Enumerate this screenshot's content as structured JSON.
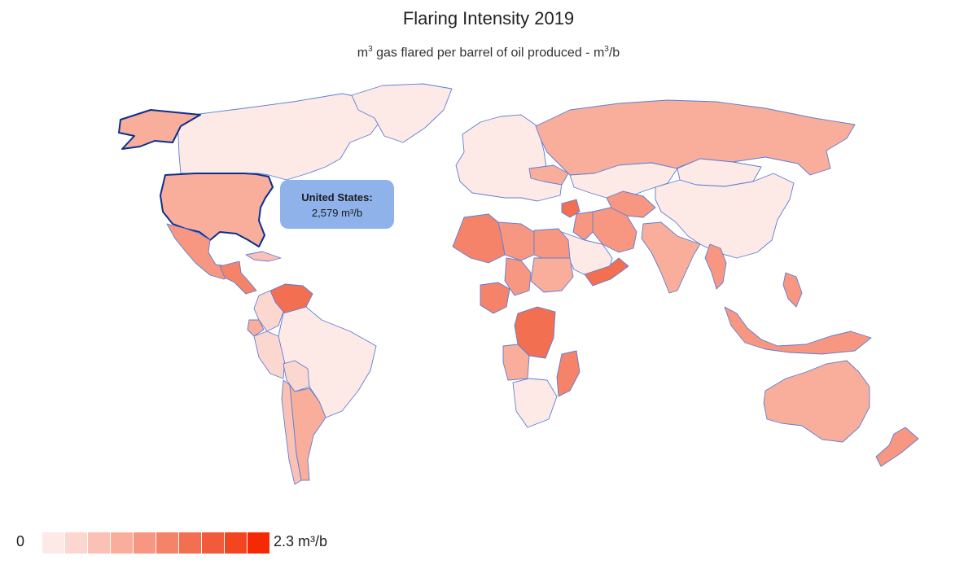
{
  "title": "Flaring Intensity 2019",
  "subtitle": {
    "prefix": "m",
    "sup1": "3",
    "middle": " gas flared per barrel of oil produced - m",
    "sup2": "3",
    "suffix": "/b"
  },
  "tooltip": {
    "country": "United States:",
    "value": "2,579 m³/b"
  },
  "legend": {
    "min_label": "0",
    "max_label": "2.3 m³/b",
    "colors": [
      "#fde9e6",
      "#fcd7d0",
      "#fbc1b5",
      "#f9ad9b",
      "#f79781",
      "#f58369",
      "#f36f52",
      "#f15b3b",
      "#f24520",
      "#f52a05"
    ]
  },
  "map": {
    "highlight_stroke": "#0a2f8f",
    "border_color": "#5b7fd6",
    "countries": [
      {
        "name": "United States",
        "level": 3
      },
      {
        "name": "Alaska (United States)",
        "level": 3
      },
      {
        "name": "Canada",
        "level": 0
      },
      {
        "name": "Greenland",
        "level": 0
      },
      {
        "name": "Mexico",
        "level": 4
      },
      {
        "name": "Guatemala",
        "level": 5
      },
      {
        "name": "Cuba",
        "level": 2
      },
      {
        "name": "Venezuela",
        "level": 6
      },
      {
        "name": "Colombia",
        "level": 1
      },
      {
        "name": "Ecuador",
        "level": 3
      },
      {
        "name": "Peru",
        "level": 1
      },
      {
        "name": "Brazil",
        "level": 0
      },
      {
        "name": "Bolivia",
        "level": 1
      },
      {
        "name": "Argentina",
        "level": 3
      },
      {
        "name": "Chile",
        "level": 2
      },
      {
        "name": "Russia",
        "level": 3
      },
      {
        "name": "Kazakhstan",
        "level": 0
      },
      {
        "name": "China",
        "level": 0
      },
      {
        "name": "Mongolia",
        "level": 0
      },
      {
        "name": "Algeria",
        "level": 5
      },
      {
        "name": "Libya",
        "level": 4
      },
      {
        "name": "Egypt",
        "level": 4
      },
      {
        "name": "Nigeria",
        "level": 5
      },
      {
        "name": "Chad",
        "level": 4
      },
      {
        "name": "Sudan",
        "level": 3
      },
      {
        "name": "DR Congo",
        "level": 6
      },
      {
        "name": "Angola",
        "level": 3
      },
      {
        "name": "Mozambique",
        "level": 5
      },
      {
        "name": "South Africa",
        "level": 0
      },
      {
        "name": "Saudi Arabia",
        "level": 0
      },
      {
        "name": "Yemen",
        "level": 6
      },
      {
        "name": "Iran",
        "level": 4
      },
      {
        "name": "Iraq",
        "level": 4
      },
      {
        "name": "Syria",
        "level": 6
      },
      {
        "name": "Turkmenistan",
        "level": 4
      },
      {
        "name": "India",
        "level": 3
      },
      {
        "name": "Myanmar",
        "level": 4
      },
      {
        "name": "Indonesia",
        "level": 4
      },
      {
        "name": "Philippines",
        "level": 4
      },
      {
        "name": "Australia",
        "level": 3
      },
      {
        "name": "New Zealand",
        "level": 4
      },
      {
        "name": "Europe",
        "level": 0
      },
      {
        "name": "Ukraine",
        "level": 3
      }
    ]
  }
}
